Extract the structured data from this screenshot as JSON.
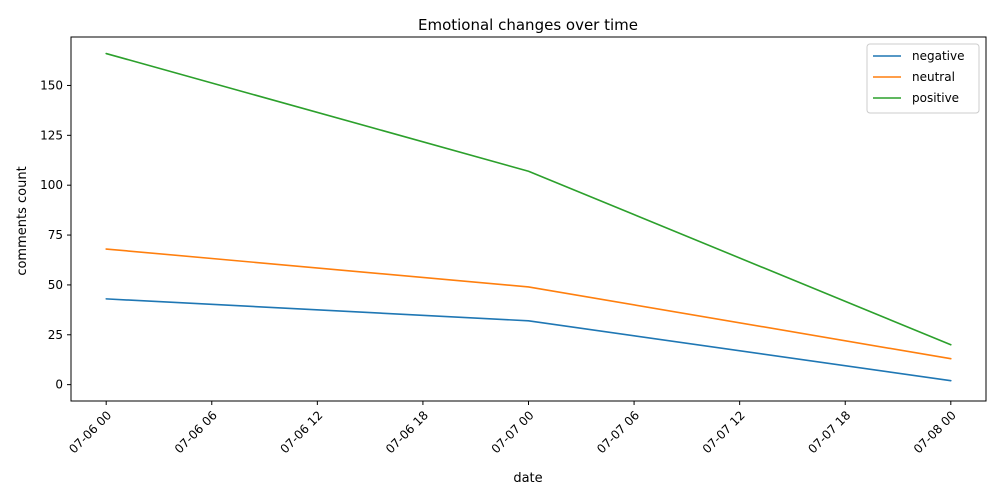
{
  "chart_data": {
    "type": "line",
    "title": "Emotional changes over time",
    "xlabel": "date",
    "ylabel": "comments count",
    "x": [
      "07-06 00",
      "07-07 00",
      "07-08 00"
    ],
    "x_ticks": [
      "07-06 00",
      "07-06 06",
      "07-06 12",
      "07-06 18",
      "07-07 00",
      "07-07 06",
      "07-07 12",
      "07-07 18",
      "07-08 00"
    ],
    "y_ticks": [
      0,
      25,
      50,
      75,
      100,
      125,
      150
    ],
    "xlim": [
      "07-05 22",
      "07-08 02"
    ],
    "ylim": [
      -8.2,
      174.3
    ],
    "grid": false,
    "legend_position": "top-right",
    "series": [
      {
        "name": "negative",
        "color": "#1f77b4",
        "values": [
          43,
          32,
          2
        ]
      },
      {
        "name": "neutral",
        "color": "#ff7f0e",
        "values": [
          68,
          49,
          13
        ]
      },
      {
        "name": "positive",
        "color": "#2ca02c",
        "values": [
          166,
          107,
          20
        ]
      }
    ]
  }
}
